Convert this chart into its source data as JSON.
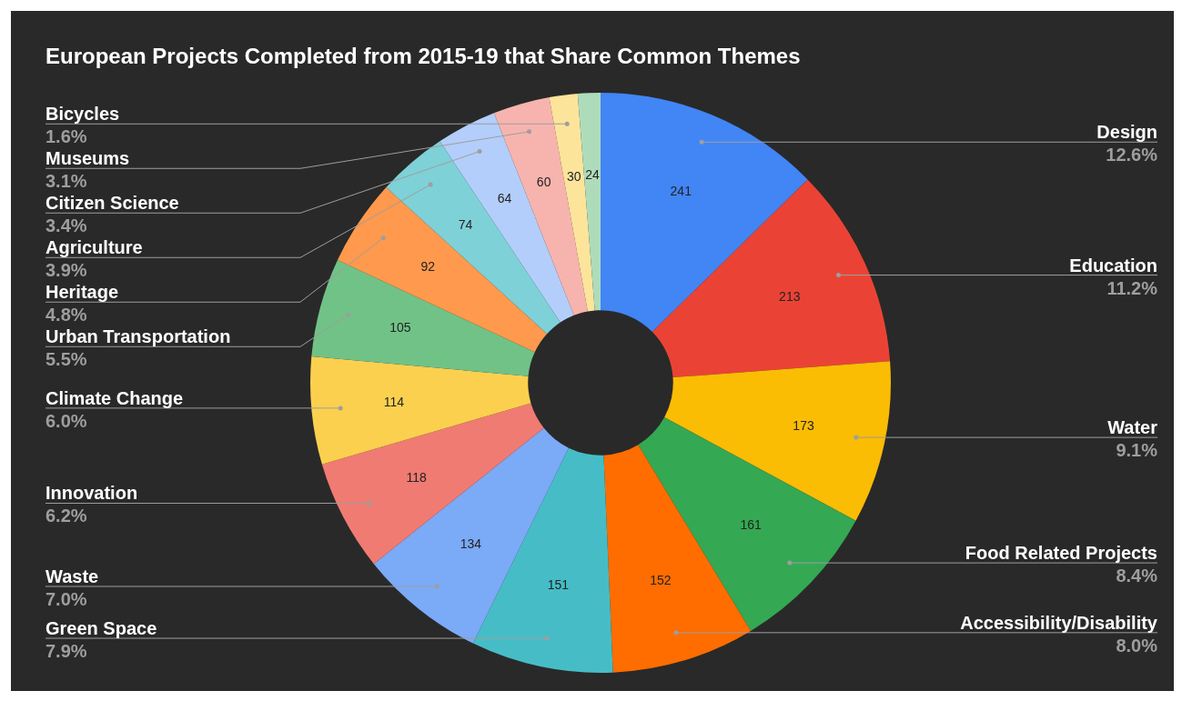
{
  "chart_data": {
    "type": "donut",
    "title": "European Projects Completed from 2015-19 that Share Common Themes",
    "categories": [
      "Design",
      "Education",
      "Water",
      "Food Related Projects",
      "Accessibility/Disability",
      "Green Space",
      "Waste",
      "Innovation",
      "Climate Change",
      "Urban Transportation",
      "Heritage",
      "Agriculture",
      "Citizen Science",
      "Museums",
      "Bicycles",
      null
    ],
    "values": [
      241,
      213,
      173,
      161,
      152,
      151,
      134,
      118,
      114,
      105,
      92,
      74,
      64,
      60,
      30,
      24
    ],
    "colors": [
      "#4285f4",
      "#ea4335",
      "#fbbc04",
      "#34a853",
      "#ff6d01",
      "#46bdc6",
      "#7baaf7",
      "#f07b72",
      "#fcd04f",
      "#71c287",
      "#ff994d",
      "#7ed1d7",
      "#b3cefb",
      "#f7b4ae",
      "#fde49b",
      "#aedcba"
    ],
    "annotations": [
      {
        "text": "12.6%",
        "x": "Design"
      },
      {
        "text": "11.2%",
        "x": "Education"
      },
      {
        "text": "9.1%",
        "x": "Water"
      },
      {
        "text": "8.4%",
        "x": "Food Related Projects"
      },
      {
        "text": "8.0%",
        "x": "Accessibility/Disability"
      },
      {
        "text": "7.9%",
        "x": "Green Space"
      },
      {
        "text": "7.0%",
        "x": "Waste"
      },
      {
        "text": "6.2%",
        "x": "Innovation"
      },
      {
        "text": "6.0%",
        "x": "Climate Change"
      },
      {
        "text": "5.5%",
        "x": "Urban Transportation"
      },
      {
        "text": "4.8%",
        "x": "Heritage"
      },
      {
        "text": "3.9%",
        "x": "Agriculture"
      },
      {
        "text": "3.4%",
        "x": "Citizen Science"
      },
      {
        "text": "3.1%",
        "x": "Museums"
      },
      {
        "text": "1.6%",
        "x": "Bicycles"
      }
    ],
    "data_labels": true,
    "legend": false
  }
}
